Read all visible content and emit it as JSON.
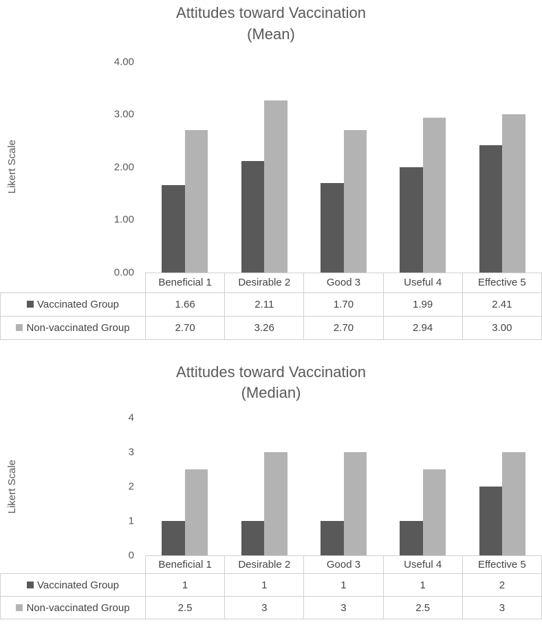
{
  "colors": {
    "series1": "#595959",
    "series2": "#b3b3b3",
    "title_text": "#595959",
    "axis_text": "#595959",
    "table_text": "#444444",
    "table_border": "#d0d0d0"
  },
  "chart_data": [
    {
      "type": "bar",
      "title": "Attitudes toward Vaccination (Mean)",
      "title_line1": "Attitudes toward Vaccination",
      "title_line2": "(Mean)",
      "xlabel": "",
      "ylabel": "Likert Scale",
      "ylim": [
        0,
        4
      ],
      "yticks": [
        "4.00",
        "3.00",
        "2.00",
        "1.00",
        "0.00"
      ],
      "grid": false,
      "legend_position": "data-table-left-column",
      "categories": [
        "Beneficial 1",
        "Desirable 2",
        "Good 3",
        "Useful 4",
        "Effective 5"
      ],
      "series": [
        {
          "name": "Vaccinated Group",
          "values": [
            1.66,
            2.11,
            1.7,
            1.99,
            2.41
          ],
          "labels": [
            "1.66",
            "2.11",
            "1.70",
            "1.99",
            "2.41"
          ]
        },
        {
          "name": "Non-vaccinated Group",
          "values": [
            2.7,
            3.26,
            2.7,
            2.94,
            3.0
          ],
          "labels": [
            "2.70",
            "3.26",
            "2.70",
            "2.94",
            "3.00"
          ]
        }
      ]
    },
    {
      "type": "bar",
      "title": "Attitudes toward Vaccination (Median)",
      "title_line1": "Attitudes toward Vaccination",
      "title_line2": "(Median)",
      "xlabel": "",
      "ylabel": "Likert Scale",
      "ylim": [
        0,
        4
      ],
      "yticks": [
        "4",
        "3",
        "2",
        "1",
        "0"
      ],
      "grid": false,
      "legend_position": "data-table-left-column",
      "categories": [
        "Beneficial 1",
        "Desirable 2",
        "Good 3",
        "Useful 4",
        "Effective 5"
      ],
      "series": [
        {
          "name": "Vaccinated Group",
          "values": [
            1,
            1,
            1,
            1,
            2
          ],
          "labels": [
            "1",
            "1",
            "1",
            "1",
            "2"
          ]
        },
        {
          "name": "Non-vaccinated Group",
          "values": [
            2.5,
            3,
            3,
            2.5,
            3
          ],
          "labels": [
            "2.5",
            "3",
            "3",
            "2.5",
            "3"
          ]
        }
      ]
    }
  ]
}
